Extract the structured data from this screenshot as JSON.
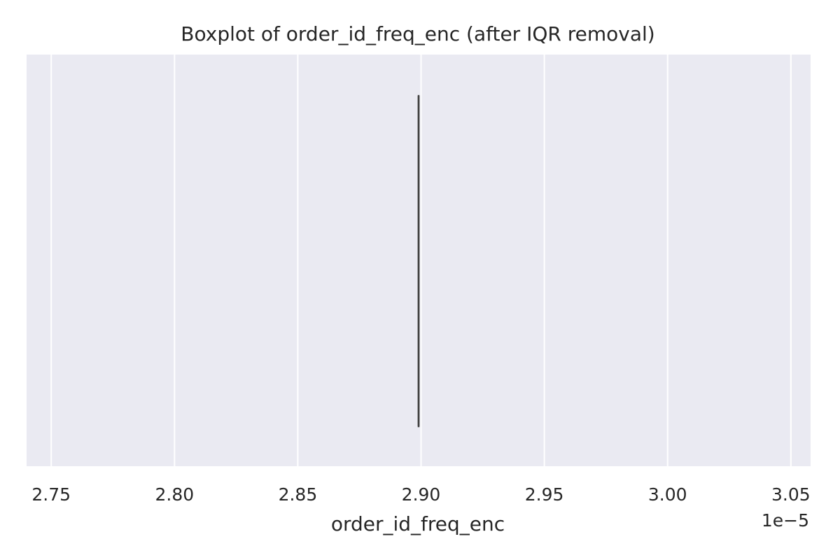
{
  "chart_data": {
    "type": "box",
    "title": "Boxplot of order_id_freq_enc (after IQR removal)",
    "xlabel": "order_id_freq_enc",
    "ylabel": "",
    "axis_offset_label": "1e−5",
    "xlim": [
      2.74,
      3.058
    ],
    "x_ticks": [
      2.75,
      2.8,
      2.85,
      2.9,
      2.95,
      3.0,
      3.05
    ],
    "x_tick_labels": [
      "2.75",
      "2.80",
      "2.85",
      "2.90",
      "2.95",
      "3.00",
      "3.05"
    ],
    "grid": true,
    "orientation": "horizontal",
    "series": [
      {
        "min": 2.899,
        "q1": 2.899,
        "median": 2.899,
        "q3": 2.899,
        "max": 2.899
      }
    ],
    "colors": {
      "plot_background": "#EAEAF2",
      "grid": "#FFFFFF",
      "box_line": "#3F3F3F",
      "text": "#262626"
    }
  }
}
